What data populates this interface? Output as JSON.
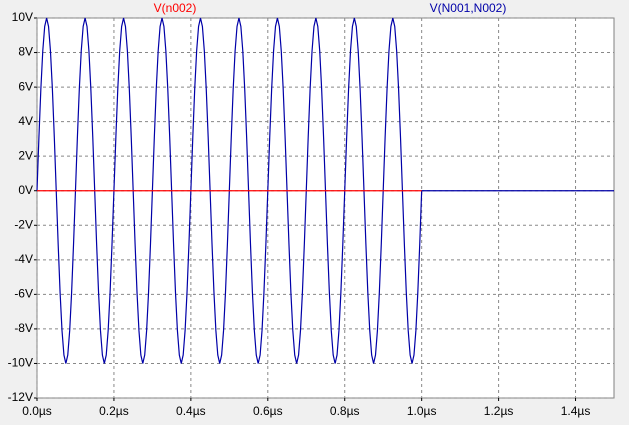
{
  "chart_data": {
    "type": "line",
    "series": [
      {
        "name": "V(n002)",
        "color": "#ff0000",
        "x": [
          0,
          1.0
        ],
        "values": [
          0,
          0
        ]
      },
      {
        "name": "V(N001,N002)",
        "color": "#0000a8",
        "x": [
          0,
          0.005,
          0.01,
          0.015,
          0.02,
          0.025,
          0.03,
          0.035,
          0.04,
          0.045,
          0.05,
          0.055,
          0.06,
          0.065,
          0.07,
          0.075,
          0.08,
          0.085,
          0.09,
          0.095,
          0.1,
          0.105,
          0.11,
          0.115,
          0.12,
          0.125,
          0.13,
          0.135,
          0.14,
          0.145,
          0.15,
          0.155,
          0.16,
          0.165,
          0.17,
          0.175,
          0.18,
          0.185,
          0.19,
          0.195,
          0.2,
          0.205,
          0.21,
          0.215,
          0.22,
          0.225,
          0.23,
          0.235,
          0.24,
          0.245,
          0.25,
          0.255,
          0.26,
          0.265,
          0.27,
          0.275,
          0.28,
          0.285,
          0.29,
          0.295,
          0.3,
          0.305,
          0.31,
          0.315,
          0.32,
          0.325,
          0.33,
          0.335,
          0.34,
          0.345,
          0.35,
          0.355,
          0.36,
          0.365,
          0.37,
          0.375,
          0.38,
          0.385,
          0.39,
          0.395,
          0.4,
          0.405,
          0.41,
          0.415,
          0.42,
          0.425,
          0.43,
          0.435,
          0.44,
          0.445,
          0.45,
          0.455,
          0.46,
          0.465,
          0.47,
          0.475,
          0.48,
          0.485,
          0.49,
          0.495,
          0.5,
          0.505,
          0.51,
          0.515,
          0.52,
          0.525,
          0.53,
          0.535,
          0.54,
          0.545,
          0.55,
          0.555,
          0.56,
          0.565,
          0.57,
          0.575,
          0.58,
          0.585,
          0.59,
          0.595,
          0.6,
          0.605,
          0.61,
          0.615,
          0.62,
          0.625,
          0.63,
          0.635,
          0.64,
          0.645,
          0.65,
          0.655,
          0.66,
          0.665,
          0.67,
          0.675,
          0.68,
          0.685,
          0.69,
          0.695,
          0.7,
          0.705,
          0.71,
          0.715,
          0.72,
          0.725,
          0.73,
          0.735,
          0.74,
          0.745,
          0.75,
          0.755,
          0.76,
          0.765,
          0.77,
          0.775,
          0.78,
          0.785,
          0.79,
          0.795,
          0.8,
          0.805,
          0.81,
          0.815,
          0.82,
          0.825,
          0.83,
          0.835,
          0.84,
          0.845,
          0.85,
          0.855,
          0.86,
          0.865,
          0.87,
          0.875,
          0.88,
          0.885,
          0.89,
          0.895,
          0.9,
          0.905,
          0.91,
          0.915,
          0.92,
          0.925,
          0.93,
          0.935,
          0.94,
          0.945,
          0.95,
          0.955,
          0.96,
          0.965,
          0.97,
          0.975,
          0.98,
          0.985,
          0.99,
          0.995,
          1.0,
          1.5
        ],
        "values": [
          0,
          3.09,
          5.88,
          8.09,
          9.51,
          10,
          9.51,
          8.09,
          5.88,
          3.09,
          0,
          -3.09,
          -5.88,
          -8.09,
          -9.51,
          -10,
          -9.51,
          -8.09,
          -5.88,
          -3.09,
          0,
          3.09,
          5.88,
          8.09,
          9.51,
          10,
          9.51,
          8.09,
          5.88,
          3.09,
          0,
          -3.09,
          -5.88,
          -8.09,
          -9.51,
          -10,
          -9.51,
          -8.09,
          -5.88,
          -3.09,
          0,
          3.09,
          5.88,
          8.09,
          9.51,
          10,
          9.51,
          8.09,
          5.88,
          3.09,
          0,
          -3.09,
          -5.88,
          -8.09,
          -9.51,
          -10,
          -9.51,
          -8.09,
          -5.88,
          -3.09,
          0,
          3.09,
          5.88,
          8.09,
          9.51,
          10,
          9.51,
          8.09,
          5.88,
          3.09,
          0,
          -3.09,
          -5.88,
          -8.09,
          -9.51,
          -10,
          -9.51,
          -8.09,
          -5.88,
          -3.09,
          0,
          3.09,
          5.88,
          8.09,
          9.51,
          10,
          9.51,
          8.09,
          5.88,
          3.09,
          0,
          -3.09,
          -5.88,
          -8.09,
          -9.51,
          -10,
          -9.51,
          -8.09,
          -5.88,
          -3.09,
          0,
          3.09,
          5.88,
          8.09,
          9.51,
          10,
          9.51,
          8.09,
          5.88,
          3.09,
          0,
          -3.09,
          -5.88,
          -8.09,
          -9.51,
          -10,
          -9.51,
          -8.09,
          -5.88,
          -3.09,
          0,
          3.09,
          5.88,
          8.09,
          9.51,
          10,
          9.51,
          8.09,
          5.88,
          3.09,
          0,
          -3.09,
          -5.88,
          -8.09,
          -9.51,
          -10,
          -9.51,
          -8.09,
          -5.88,
          -3.09,
          0,
          3.09,
          5.88,
          8.09,
          9.51,
          10,
          9.51,
          8.09,
          5.88,
          3.09,
          0,
          -3.09,
          -5.88,
          -8.09,
          -9.51,
          -10,
          -9.51,
          -8.09,
          -5.88,
          -3.09,
          0,
          3.09,
          5.88,
          8.09,
          9.51,
          10,
          9.51,
          8.09,
          5.88,
          3.09,
          0,
          -3.09,
          -5.88,
          -8.09,
          -9.51,
          -10,
          -9.51,
          -8.09,
          -5.88,
          -3.09,
          0,
          3.09,
          5.88,
          8.09,
          9.51,
          10,
          9.51,
          8.09,
          5.88,
          3.09,
          0,
          -3.09,
          -5.88,
          -8.09,
          -9.51,
          -10,
          -9.51,
          -8.09,
          -5.88,
          -3.09,
          0,
          0
        ]
      }
    ],
    "xlim": [
      0,
      1.5
    ],
    "xticks": [
      {
        "value": 0,
        "label": "0.0µs"
      },
      {
        "value": 0.2,
        "label": "0.2µs"
      },
      {
        "value": 0.4,
        "label": "0.4µs"
      },
      {
        "value": 0.6,
        "label": "0.6µs"
      },
      {
        "value": 0.8,
        "label": "0.8µs"
      },
      {
        "value": 1.0,
        "label": "1.0µs"
      },
      {
        "value": 1.2,
        "label": "1.2µs"
      },
      {
        "value": 1.4,
        "label": "1.4µs"
      }
    ],
    "ylim": [
      -12,
      10
    ],
    "yticks": [
      {
        "value": -12,
        "label": "-12V"
      },
      {
        "value": -10,
        "label": "-10V"
      },
      {
        "value": -8,
        "label": "-8V"
      },
      {
        "value": -6,
        "label": "-6V"
      },
      {
        "value": -4,
        "label": "-4V"
      },
      {
        "value": -2,
        "label": "-2V"
      },
      {
        "value": 0,
        "label": "0V"
      },
      {
        "value": 2,
        "label": "2V"
      },
      {
        "value": 4,
        "label": "4V"
      },
      {
        "value": 6,
        "label": "6V"
      },
      {
        "value": 8,
        "label": "8V"
      },
      {
        "value": 10,
        "label": "10V"
      }
    ],
    "grid": true
  }
}
